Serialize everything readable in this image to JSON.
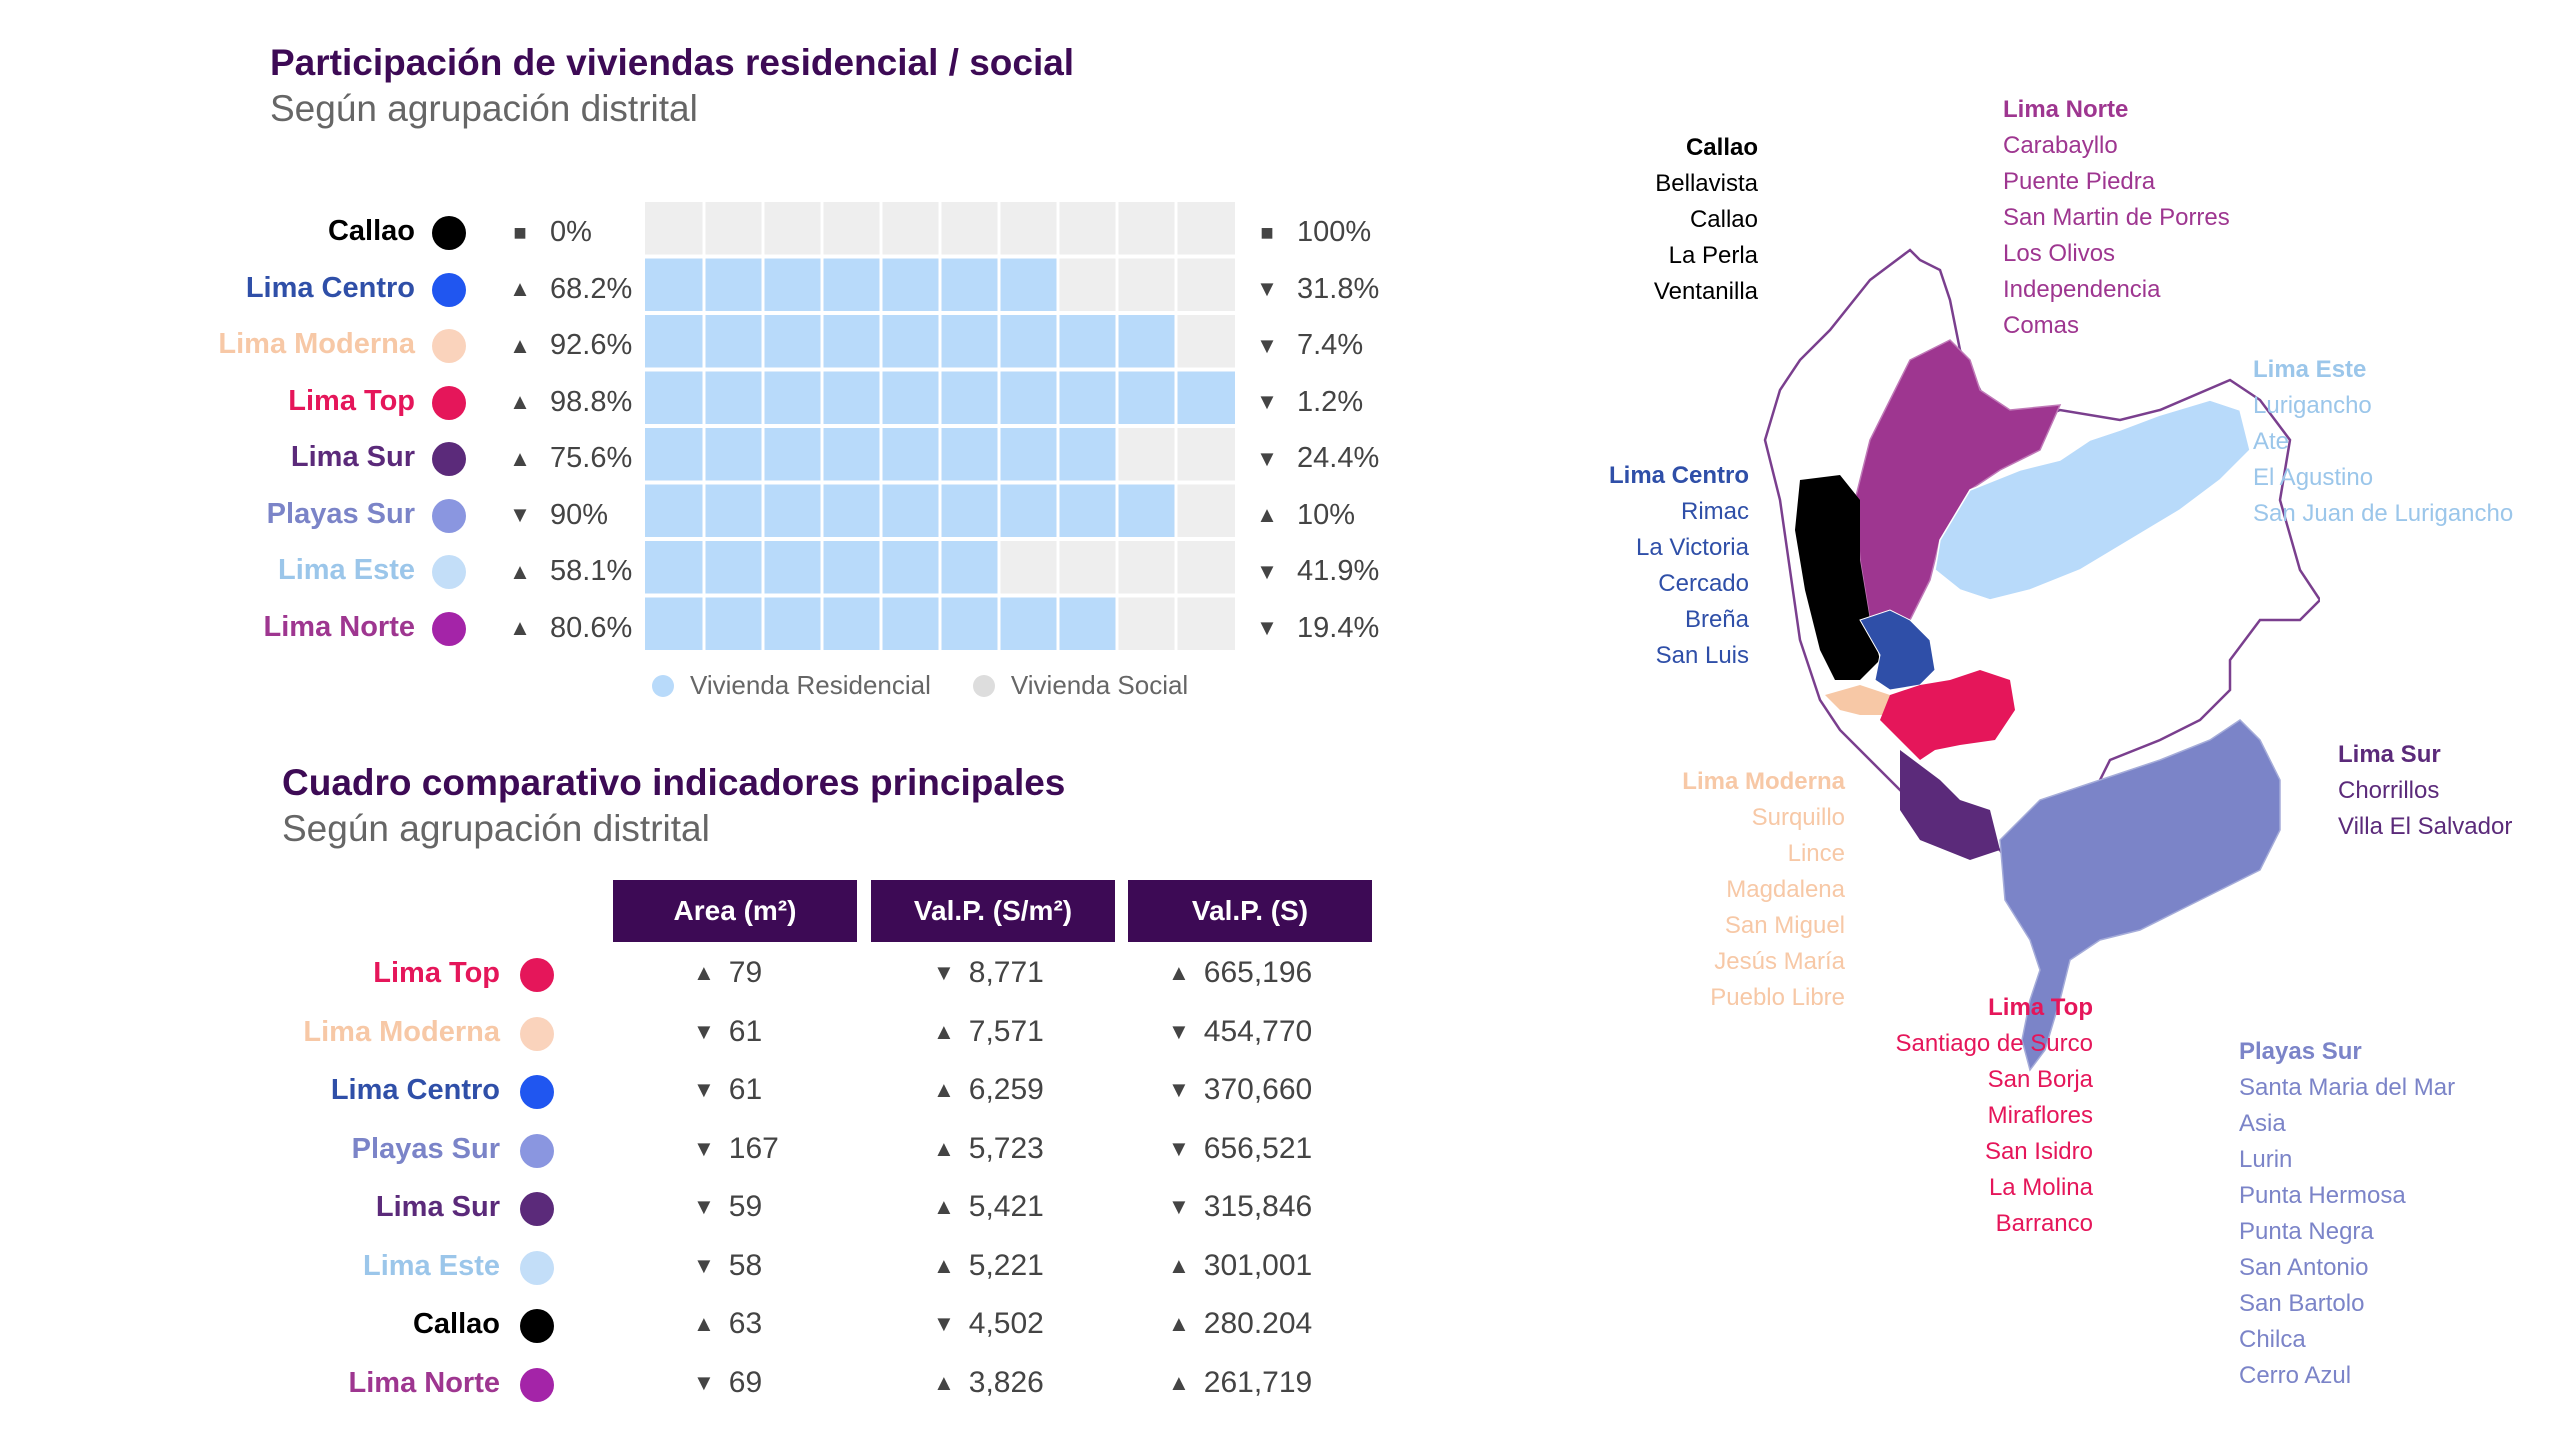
{
  "colors": {
    "callao": "#000000",
    "lima_centro": "#2f4fa8",
    "lima_centro_dot": "#2056f0",
    "lima_moderna": "#f7c8a6",
    "lima_moderna_dot": "#fad3bc",
    "lima_top": "#e5165a",
    "lima_sur": "#5b2a7a",
    "playas_sur": "#7b84c8",
    "playas_sur_dot": "#8a96e0",
    "lima_este": "#9bc6ea",
    "lima_este_dot": "#c3def8",
    "lima_norte": "#9e3690",
    "lima_norte_dot": "#a424a8",
    "residencial": "#b8dafa",
    "social": "#eeeeee",
    "header": "#3d0a55"
  },
  "section1": {
    "title": "Participación de viviendas residencial / social",
    "subtitle": "Según agrupación distrital"
  },
  "chart_data": {
    "type": "bar",
    "stacked": true,
    "orientation": "horizontal",
    "title": "Participación de viviendas residencial / social",
    "subtitle": "Según agrupación distrital",
    "categories": [
      "Callao",
      "Lima Centro",
      "Lima Moderna",
      "Lima Top",
      "Lima Sur",
      "Playas Sur",
      "Lima Este",
      "Lima Norte"
    ],
    "series": [
      {
        "name": "Vivienda Residencial",
        "values": [
          0,
          68.2,
          92.6,
          98.8,
          75.6,
          90,
          58.1,
          80.6
        ]
      },
      {
        "name": "Vivienda Social",
        "values": [
          100,
          31.8,
          7.4,
          1.2,
          24.4,
          10,
          41.9,
          19.4
        ]
      }
    ],
    "left_labels": [
      "0%",
      "68.2%",
      "92.6%",
      "98.8%",
      "75.6%",
      "90%",
      "58.1%",
      "80.6%"
    ],
    "left_symbols": [
      "■",
      "▲",
      "▲",
      "▲",
      "▲",
      "▼",
      "▲",
      "▲"
    ],
    "right_labels": [
      "100%",
      "31.8%",
      "7.4%",
      "1.2%",
      "24.4%",
      "10%",
      "41.9%",
      "19.4%"
    ],
    "right_symbols": [
      "■",
      "▼",
      "▼",
      "▼",
      "▼",
      "▲",
      "▼",
      "▼"
    ],
    "xlim": [
      0,
      100
    ],
    "legend": "bottom"
  },
  "rows1_keys": [
    "callao",
    "lima_centro",
    "lima_moderna",
    "lima_top",
    "lima_sur",
    "playas_sur",
    "lima_este",
    "lima_norte"
  ],
  "section2": {
    "title": "Cuadro comparativo indicadores principales",
    "subtitle": "Según agrupación distrital",
    "headers": [
      "Area (m²)",
      "Val.P. (S/m²)",
      "Val.P. (S)"
    ],
    "rows": [
      {
        "name": "Lima Top",
        "key": "lima_top",
        "area": "79",
        "area_sym": "▲",
        "vpm2": "8,771",
        "vpm2_sym": "▼",
        "vp": "665,196",
        "vp_sym": "▲"
      },
      {
        "name": "Lima Moderna",
        "key": "lima_moderna",
        "area": "61",
        "area_sym": "▼",
        "vpm2": "7,571",
        "vpm2_sym": "▲",
        "vp": "454,770",
        "vp_sym": "▼"
      },
      {
        "name": "Lima Centro",
        "key": "lima_centro",
        "area": "61",
        "area_sym": "▼",
        "vpm2": "6,259",
        "vpm2_sym": "▲",
        "vp": "370,660",
        "vp_sym": "▼"
      },
      {
        "name": "Playas Sur",
        "key": "playas_sur",
        "area": "167",
        "area_sym": "▼",
        "vpm2": "5,723",
        "vpm2_sym": "▲",
        "vp": "656,521",
        "vp_sym": "▼"
      },
      {
        "name": "Lima Sur",
        "key": "lima_sur",
        "area": "59",
        "area_sym": "▼",
        "vpm2": "5,421",
        "vpm2_sym": "▲",
        "vp": "315,846",
        "vp_sym": "▼"
      },
      {
        "name": "Lima Este",
        "key": "lima_este",
        "area": "58",
        "area_sym": "▼",
        "vpm2": "5,221",
        "vpm2_sym": "▲",
        "vp": "301,001",
        "vp_sym": "▲"
      },
      {
        "name": "Callao",
        "key": "callao",
        "area": "63",
        "area_sym": "▲",
        "vpm2": "4,502",
        "vpm2_sym": "▼",
        "vp": "280.204",
        "vp_sym": "▲"
      },
      {
        "name": "Lima Norte",
        "key": "lima_norte",
        "area": "69",
        "area_sym": "▼",
        "vpm2": "3,826",
        "vpm2_sym": "▲",
        "vp": "261,719",
        "vp_sym": "▲"
      }
    ]
  },
  "map": {
    "groups": [
      {
        "key": "callao",
        "name": "Callao",
        "districts": [
          "Bellavista",
          "Callao",
          "La Perla",
          "Ventanilla"
        ]
      },
      {
        "key": "lima_norte",
        "name": "Lima Norte",
        "districts": [
          "Carabayllo",
          "Puente Piedra",
          "San Martin de Porres",
          "Los Olivos",
          "Independencia",
          "Comas"
        ]
      },
      {
        "key": "lima_este",
        "name": "Lima Este",
        "districts": [
          "Lurigancho",
          "Ate",
          "El Agustino",
          "San Juan de Lurigancho"
        ]
      },
      {
        "key": "lima_centro",
        "name": "Lima Centro",
        "districts": [
          "Rimac",
          "La Victoria",
          "Cercado",
          "Breña",
          "San Luis"
        ]
      },
      {
        "key": "lima_sur",
        "name": "Lima Sur",
        "districts": [
          "Chorrillos",
          "Villa El Salvador"
        ]
      },
      {
        "key": "lima_moderna",
        "name": "Lima Moderna",
        "districts": [
          "Surquillo",
          "Lince",
          "Magdalena",
          "San Miguel",
          "Jesús María",
          "Pueblo Libre"
        ]
      },
      {
        "key": "lima_top",
        "name": "Lima Top",
        "districts": [
          "Santiago de Surco",
          "San Borja",
          "Miraflores",
          "San Isidro",
          "La Molina",
          "Barranco"
        ]
      },
      {
        "key": "playas_sur",
        "name": "Playas Sur",
        "districts": [
          "Santa Maria del Mar",
          "Asia",
          "Lurin",
          "Punta Hermosa",
          "Punta Negra",
          "San Antonio",
          "San Bartolo",
          "Chilca",
          "Cerro Azul"
        ]
      }
    ]
  }
}
